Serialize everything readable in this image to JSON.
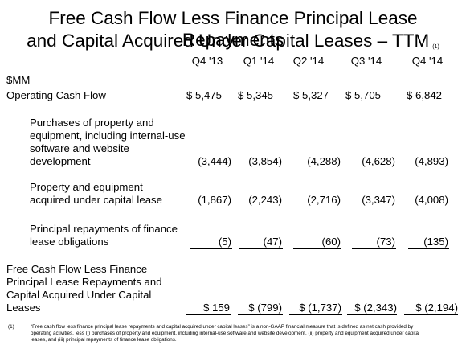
{
  "title": {
    "line1": "Free Cash Flow Less Finance Principal Lease Repayments",
    "line2": "and Capital Acquired Under Capital Leases – TTM",
    "footnote_ref": "(1)"
  },
  "unit": "$MM",
  "periods": [
    "Q4 '13",
    "Q1 '14",
    "Q2 '14",
    "Q3 '14",
    "Q4 '14"
  ],
  "rows": {
    "operating_cash_flow": {
      "label": "Operating Cash Flow",
      "values": [
        "$ 5,475",
        "$ 5,345",
        "$ 5,327",
        "$ 5,705",
        "$ 6,842"
      ]
    },
    "purchases": {
      "label": "Purchases of property and equipment, including internal-use software and website development",
      "values": [
        "(3,444)",
        "(3,854)",
        "(4,288)",
        "(4,628)",
        "(4,893)"
      ]
    },
    "capital_lease": {
      "label": "Property and equipment acquired under capital lease",
      "values": [
        "(1,867)",
        "(2,243)",
        "(2,716)",
        "(3,347)",
        "(4,008)"
      ]
    },
    "principal_repayments": {
      "label": "Principal repayments of finance lease obligations",
      "values": [
        "(5)",
        "(47)",
        "(60)",
        "(73)",
        "(135)"
      ]
    },
    "total": {
      "label": "Free Cash Flow Less Finance Principal Lease Repayments and Capital Acquired Under Capital Leases",
      "values": [
        "$ 159",
        "$ (799)",
        "$ (1,737)",
        "$ (2,343)",
        "$ (2,194)"
      ]
    }
  },
  "footnote": {
    "number": "(1)",
    "text": "“Free cash flow less finance principal lease repayments and capital acquired under capital leases” is a non-GAAP financial measure that is defined as net cash provided by operating activities, less (i) purchases of property and equipment, including internal-use software and website development, (ii) property and equipment acquired under capital leases, and (iii) principal repayments of finance lease obligations."
  }
}
